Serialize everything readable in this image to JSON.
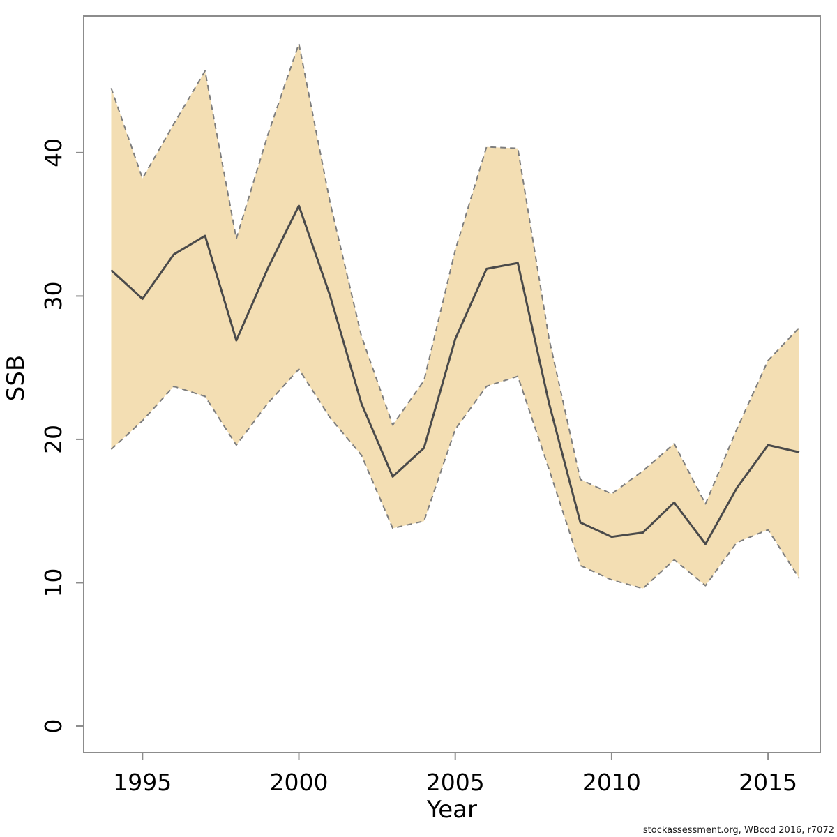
{
  "figure": {
    "ylabel": "SSB",
    "xlabel": "Year",
    "footer": "stockassessment.org, WBcod 2016, r7072"
  },
  "chart_data": {
    "type": "line",
    "title": "",
    "xlabel": "Year",
    "ylabel": "SSB",
    "x": [
      1994,
      1995,
      1996,
      1997,
      1998,
      1999,
      2000,
      2001,
      2002,
      2003,
      2004,
      2005,
      2006,
      2007,
      2008,
      2009,
      2010,
      2011,
      2012,
      2013,
      2014,
      2015,
      2016
    ],
    "series": [
      {
        "name": "SSB point estimate",
        "style": "solid",
        "color": "#4a4a4a",
        "values": [
          31.8,
          29.8,
          32.9,
          34.2,
          26.9,
          31.9,
          36.3,
          30.0,
          22.5,
          17.4,
          19.4,
          27.0,
          31.9,
          32.3,
          22.5,
          14.2,
          13.2,
          13.5,
          15.6,
          12.7,
          16.6,
          19.6,
          19.1
        ]
      },
      {
        "name": "95% CI upper",
        "style": "dashed",
        "color": "#7d7d7d",
        "values": [
          44.5,
          38.2,
          42.0,
          45.7,
          34.0,
          41.2,
          47.6,
          36.5,
          27.2,
          21.0,
          24.1,
          33.2,
          40.4,
          40.3,
          27.0,
          17.2,
          16.2,
          17.8,
          19.7,
          15.5,
          20.7,
          25.5,
          27.8
        ]
      },
      {
        "name": "95% CI lower",
        "style": "dashed",
        "color": "#7d7d7d",
        "values": [
          19.3,
          21.3,
          23.7,
          23.0,
          19.6,
          22.5,
          24.9,
          21.5,
          18.9,
          13.8,
          14.3,
          20.7,
          23.7,
          24.4,
          17.9,
          11.2,
          10.2,
          9.6,
          11.6,
          9.8,
          12.8,
          13.7,
          10.3
        ]
      }
    ],
    "band": {
      "between": [
        "95% CI upper",
        "95% CI lower"
      ],
      "fill": "#f3deb3"
    },
    "x_ticks": [
      1995,
      2000,
      2005,
      2010,
      2015
    ],
    "y_ticks": [
      0,
      10,
      20,
      30,
      40
    ],
    "xlim": [
      1993.12,
      2016.67
    ],
    "ylim": [
      -1.85,
      49.53
    ],
    "grid": false,
    "legend_position": "none",
    "colors": {
      "axis": "#8c8c8c",
      "tick": "#8c8c8c",
      "tick_label": "#000000"
    },
    "footer": "stockassessment.org, WBcod 2016, r7072"
  }
}
